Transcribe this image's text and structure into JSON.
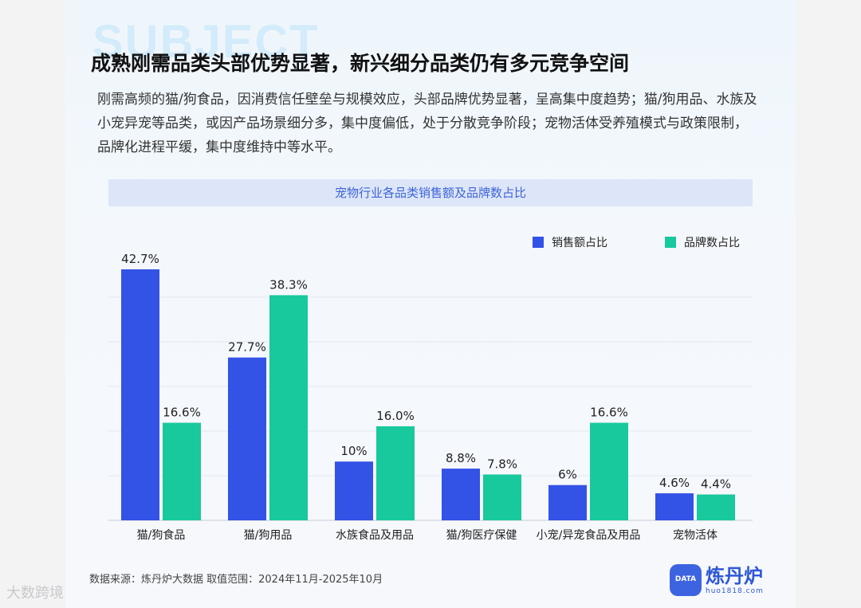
{
  "header": {
    "bg_word": "SUBJECT",
    "title": "成熟刚需品类头部优势显著，新兴细分品类仍有多元竞争空间",
    "description": "刚需高频的猫/狗食品，因消费信任壁垒与规模效应，头部品牌优势显著，呈高集中度趋势；猫/狗用品、水族及小宠异宠等品类，或因产品场景细分多，集中度偏低，处于分散竞争阶段；宠物活体受养殖模式与政策限制，品牌化进程平缓，集中度维持中等水平。"
  },
  "chart_data": {
    "type": "bar",
    "title": "宠物行业各品类销售额及品牌数占比",
    "categories": [
      "猫/狗食品",
      "猫/狗用品",
      "水族食品及用品",
      "猫/狗医疗保健",
      "小宠/异宠食品及用品",
      "宠物活体"
    ],
    "series": [
      {
        "name": "销售额占比",
        "color": "#3352e6",
        "values": [
          42.7,
          27.7,
          10,
          8.8,
          6,
          4.6
        ],
        "labels": [
          "42.7%",
          "27.7%",
          "10%",
          "8.8%",
          "6%",
          "4.6%"
        ]
      },
      {
        "name": "品牌数占比",
        "color": "#18c99d",
        "values": [
          16.6,
          38.3,
          16.0,
          7.8,
          16.6,
          4.4
        ],
        "labels": [
          "16.6%",
          "38.3%",
          "16.0%",
          "7.8%",
          "16.6%",
          "4.4%"
        ]
      }
    ],
    "ylim": [
      0,
      43
    ],
    "grid": true,
    "legend": "top-right",
    "xlabel": "",
    "ylabel": ""
  },
  "footer": {
    "source": "数据来源：炼丹炉大数据  取值范围：2024年11月-2025年10月",
    "logo_icon_text": "DATA",
    "logo_name": "炼丹炉",
    "logo_url": "huo1818.com",
    "watermark": "大数跨境"
  }
}
